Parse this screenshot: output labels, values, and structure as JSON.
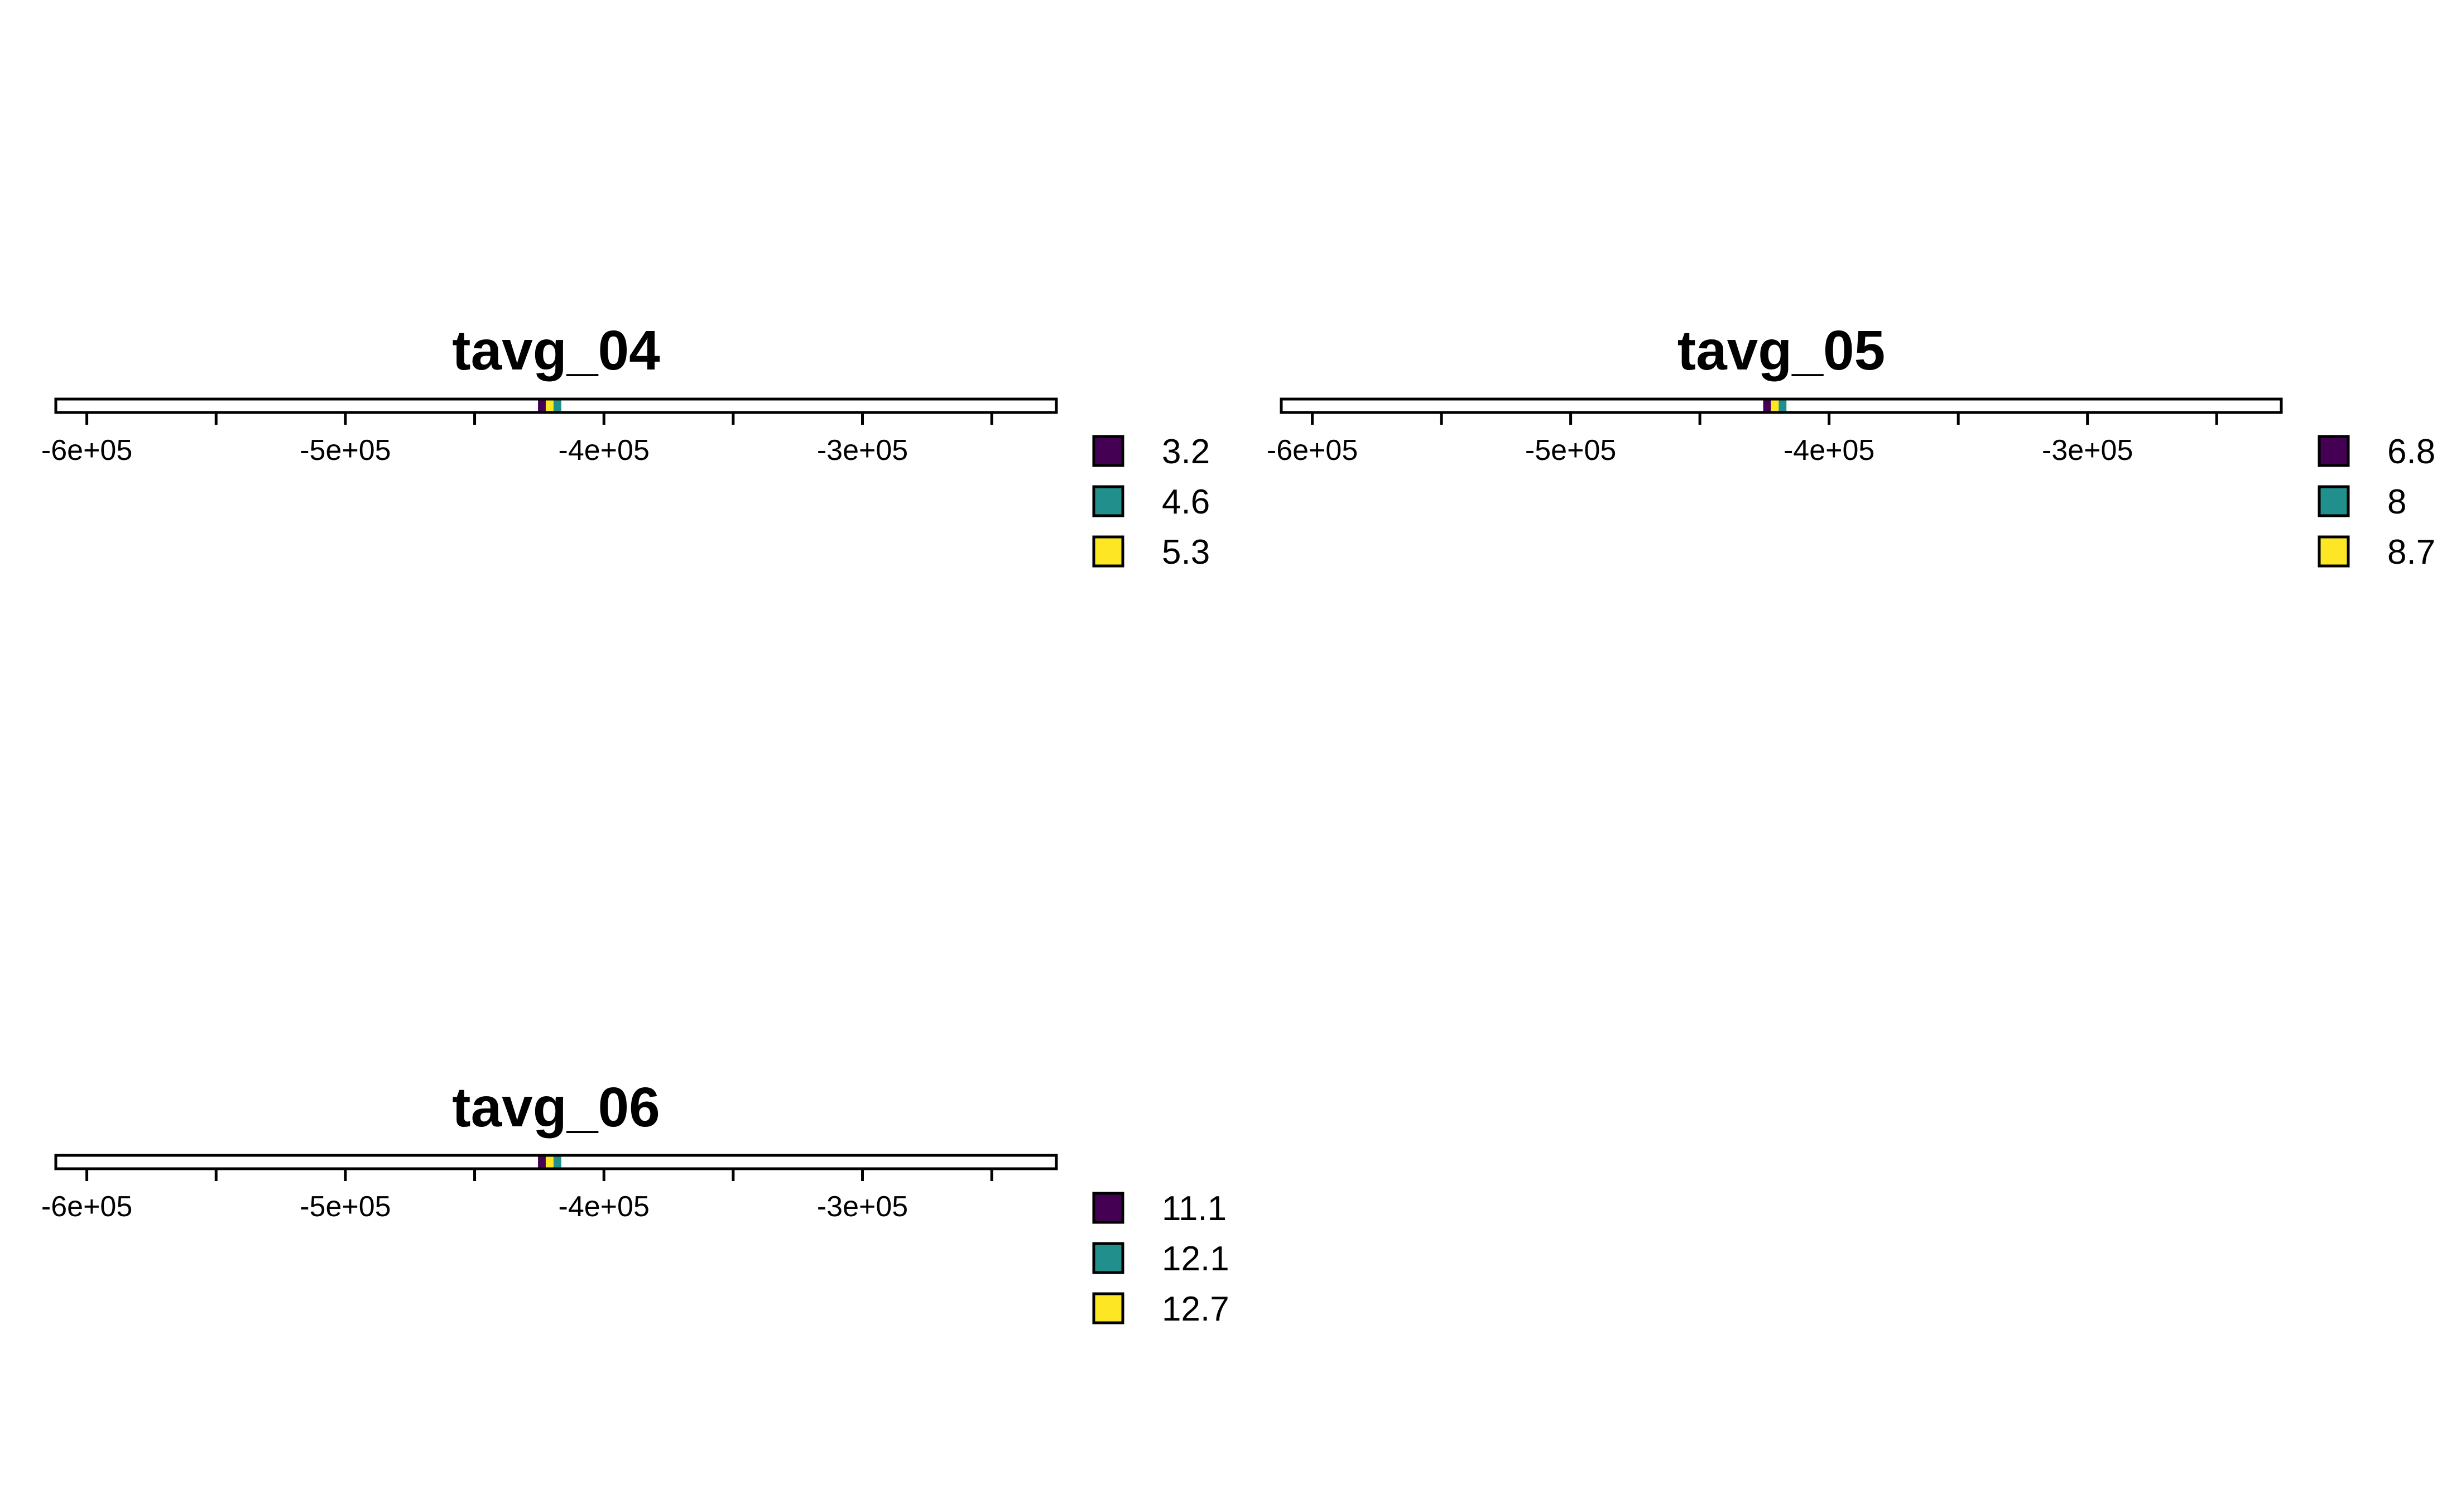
{
  "chart_data": [
    {
      "type": "heatmap",
      "title": "tavg_04",
      "xlim": [
        -612000,
        -225000
      ],
      "xticks": [
        -600000,
        -550000,
        -500000,
        -450000,
        -400000,
        -350000,
        -300000,
        -250000
      ],
      "xtick_labels": [
        "-6e+05",
        "",
        "-5e+05",
        "",
        "-4e+05",
        "",
        "-3e+05",
        ""
      ],
      "cells": [
        {
          "x": -424000,
          "value": 3.2
        },
        {
          "x": -421000,
          "value": 5.3
        },
        {
          "x": -418000,
          "value": 4.6
        }
      ],
      "legend": [
        {
          "label": "3.2",
          "color": "#440154"
        },
        {
          "label": "4.6",
          "color": "#21908C"
        },
        {
          "label": "5.3",
          "color": "#FDE725"
        }
      ],
      "grid": false,
      "legend_position": "right"
    },
    {
      "type": "heatmap",
      "title": "tavg_05",
      "xlim": [
        -612000,
        -225000
      ],
      "xticks": [
        -600000,
        -550000,
        -500000,
        -450000,
        -400000,
        -350000,
        -300000,
        -250000
      ],
      "xtick_labels": [
        "-6e+05",
        "",
        "-5e+05",
        "",
        "-4e+05",
        "",
        "-3e+05",
        ""
      ],
      "cells": [
        {
          "x": -424000,
          "value": 6.8
        },
        {
          "x": -421000,
          "value": 8.7
        },
        {
          "x": -418000,
          "value": 8
        }
      ],
      "legend": [
        {
          "label": "6.8",
          "color": "#440154"
        },
        {
          "label": "8",
          "color": "#21908C"
        },
        {
          "label": "8.7",
          "color": "#FDE725"
        }
      ],
      "grid": false,
      "legend_position": "right"
    },
    {
      "type": "heatmap",
      "title": "tavg_06",
      "xlim": [
        -612000,
        -225000
      ],
      "xticks": [
        -600000,
        -550000,
        -500000,
        -450000,
        -400000,
        -350000,
        -300000,
        -250000
      ],
      "xtick_labels": [
        "-6e+05",
        "",
        "-5e+05",
        "",
        "-4e+05",
        "",
        "-3e+05",
        ""
      ],
      "cells": [
        {
          "x": -424000,
          "value": 11.1
        },
        {
          "x": -421000,
          "value": 12.7
        },
        {
          "x": -418000,
          "value": 12.1
        }
      ],
      "legend": [
        {
          "label": "11.1",
          "color": "#440154"
        },
        {
          "label": "12.1",
          "color": "#21908C"
        },
        {
          "label": "12.7",
          "color": "#FDE725"
        }
      ],
      "grid": false,
      "legend_position": "right"
    }
  ]
}
